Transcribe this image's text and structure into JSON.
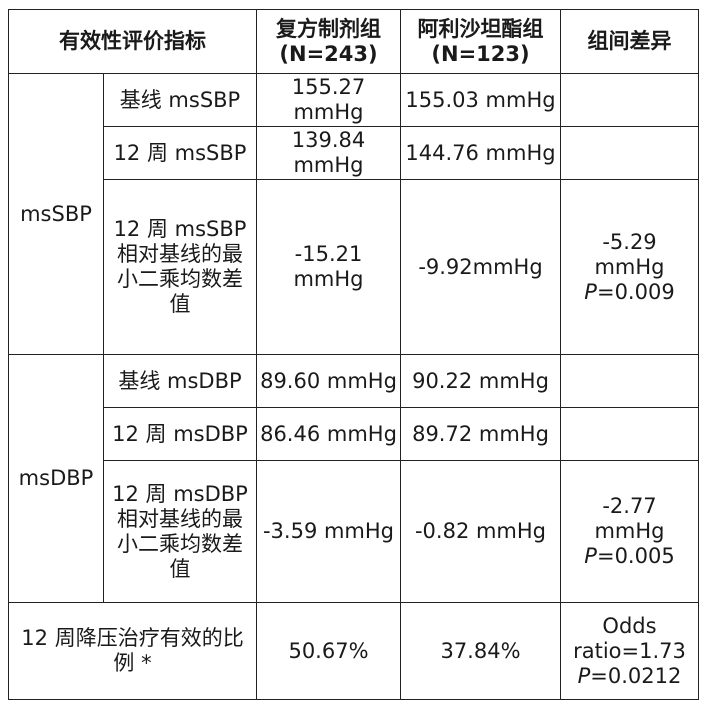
{
  "header": {
    "indicator": "有效性评价指标",
    "group1": "复方制剂组",
    "group1_n": "(N=243)",
    "group2": "阿利沙坦酯组",
    "group2_n": "(N=123)",
    "diff": "组间差异"
  },
  "sbp": {
    "label": "msSBP",
    "rows": [
      {
        "name": "基线 msSBP",
        "g1": "155.27 mmHg",
        "g2": "155.03 mmHg",
        "diff": "",
        "p": ""
      },
      {
        "name": "12 周 msSBP",
        "g1": "139.84 mmHg",
        "g2": "144.76 mmHg",
        "diff": "",
        "p": ""
      },
      {
        "name": "12 周 msSBP 相对基线的最小二乘均数差值",
        "g1": "-15.21 mmHg",
        "g2": "-9.92mmHg",
        "diff": "-5.29 mmHg",
        "p": "=0.009"
      }
    ]
  },
  "dbp": {
    "label": "msDBP",
    "rows": [
      {
        "name": "基线 msDBP",
        "g1": "89.60 mmHg",
        "g2": "90.22 mmHg",
        "diff": "",
        "p": ""
      },
      {
        "name": "12 周 msDBP",
        "g1": "86.46 mmHg",
        "g2": "89.72 mmHg",
        "diff": "",
        "p": ""
      },
      {
        "name": "12 周 msDBP 相对基线的最小二乘均数差值",
        "g1": "-3.59 mmHg",
        "g2": "-0.82 mmHg",
        "diff": "-2.77 mmHg",
        "p": "=0.005"
      }
    ]
  },
  "response": {
    "name": "12 周降压治疗有效的比例 *",
    "g1": "50.67%",
    "g2": "37.84%",
    "diff": "Odds ratio=1.73",
    "p": "=0.0212"
  },
  "p_label": "P"
}
